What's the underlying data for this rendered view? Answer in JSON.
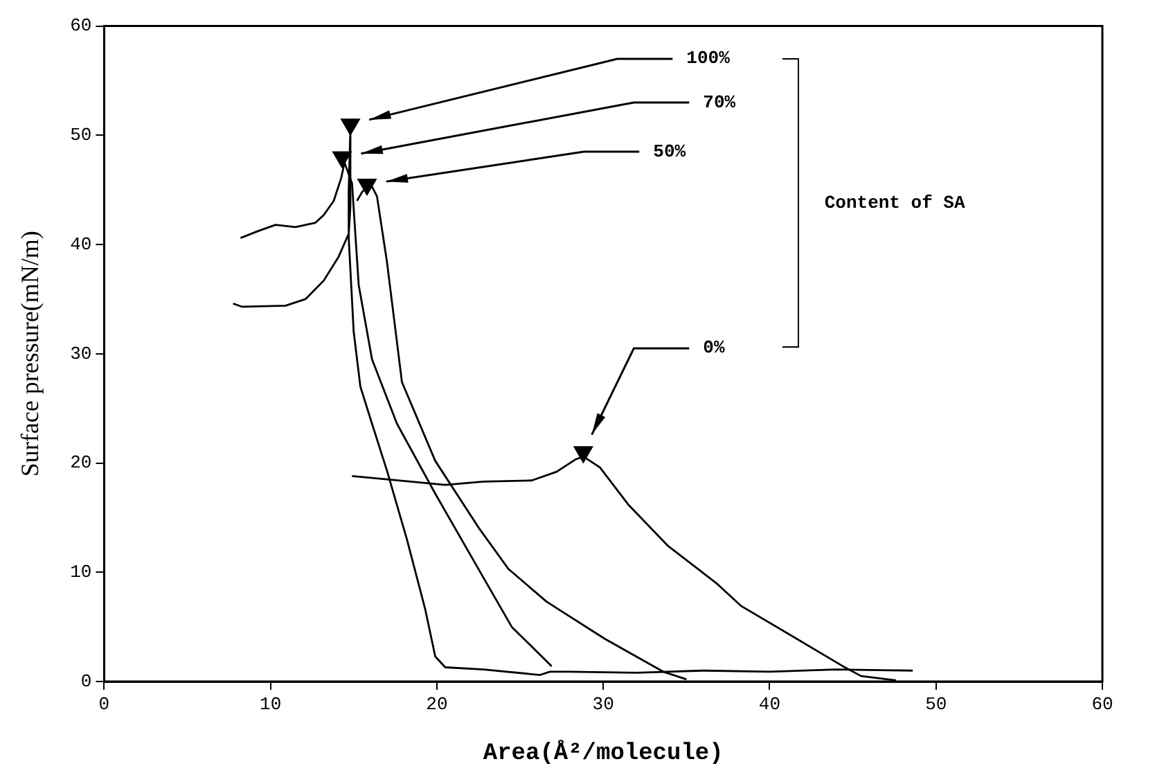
{
  "chart_data": {
    "type": "line",
    "xlabel": "Area(Å²/molecule)",
    "ylabel": "Surface pressure(mN/m)",
    "xlim": [
      0,
      60
    ],
    "xticks": [
      0,
      10,
      20,
      30,
      40,
      50,
      60
    ],
    "ylim": [
      0,
      60
    ],
    "yticks": [
      0,
      10,
      20,
      30,
      40,
      50,
      60
    ],
    "grid": false,
    "legend": false,
    "marker": "none",
    "line_style": "solid",
    "annotations": [
      "100%",
      "70%",
      "50%",
      "0%",
      "Content of SA"
    ],
    "series": [
      {
        "color": "#000000",
        "x": [
          48.6,
          44,
          40,
          36,
          32,
          28,
          26.8,
          26.2,
          22.8,
          20.5,
          19.9,
          19.3,
          18.2,
          17,
          16.1,
          15.4,
          15,
          14.7,
          14.7,
          14.8,
          14.8,
          14.7,
          14.1,
          13.2,
          12.1,
          10.9,
          8.3,
          7.75
        ],
        "values": [
          1,
          1.1,
          0.9,
          1,
          0.8,
          0.9,
          0.9,
          0.6,
          1.1,
          1.3,
          2.3,
          6.6,
          13,
          19.3,
          23.6,
          27,
          32,
          40.6,
          45,
          50.5,
          43.5,
          41,
          38.9,
          36.7,
          35,
          34.4,
          34.3,
          34.6
        ]
      },
      {
        "color": "#000000",
        "x": [
          26.9,
          24.5,
          22.8,
          19.9,
          17.6,
          16.1,
          15.3,
          14.9,
          14.45,
          14.25,
          13.8,
          13.2,
          12.7,
          11.5,
          10.3,
          9.2,
          8.2
        ],
        "values": [
          1.4,
          5,
          9.5,
          17.2,
          23.6,
          29.5,
          36.3,
          45.6,
          47.5,
          46.1,
          44,
          42.7,
          42,
          41.6,
          41.8,
          41.2,
          40.6
        ]
      },
      {
        "color": "#000000",
        "x": [
          35,
          33.6,
          30.1,
          26.6,
          24.3,
          22.5,
          19.9,
          17.9,
          17,
          16.4,
          16,
          15.5,
          15.2
        ],
        "values": [
          0.2,
          0.9,
          3.9,
          7.3,
          10.3,
          14.1,
          20.2,
          27.4,
          38.4,
          44.4,
          45.6,
          44.8,
          44
        ]
      },
      {
        "color": "#000000",
        "x": [
          47.6,
          45.5,
          44.4,
          41.2,
          38.3,
          36.8,
          33.9,
          31.5,
          29.8,
          28.8,
          28.3,
          27.2,
          25.7,
          22.8,
          20.5,
          17,
          14.9
        ],
        "values": [
          0.1,
          0.5,
          1.4,
          4.3,
          6.9,
          9,
          12.4,
          16.2,
          19.6,
          20.6,
          20.3,
          19.2,
          18.4,
          18.3,
          18,
          18.5,
          18.8
        ]
      },
      {
        "type": "scatter",
        "color": "#000000",
        "marker": "triangle",
        "x": [
          14.8,
          14.3,
          15.8,
          28.8
        ],
        "values": [
          51,
          48,
          45.5,
          21
        ]
      }
    ]
  }
}
